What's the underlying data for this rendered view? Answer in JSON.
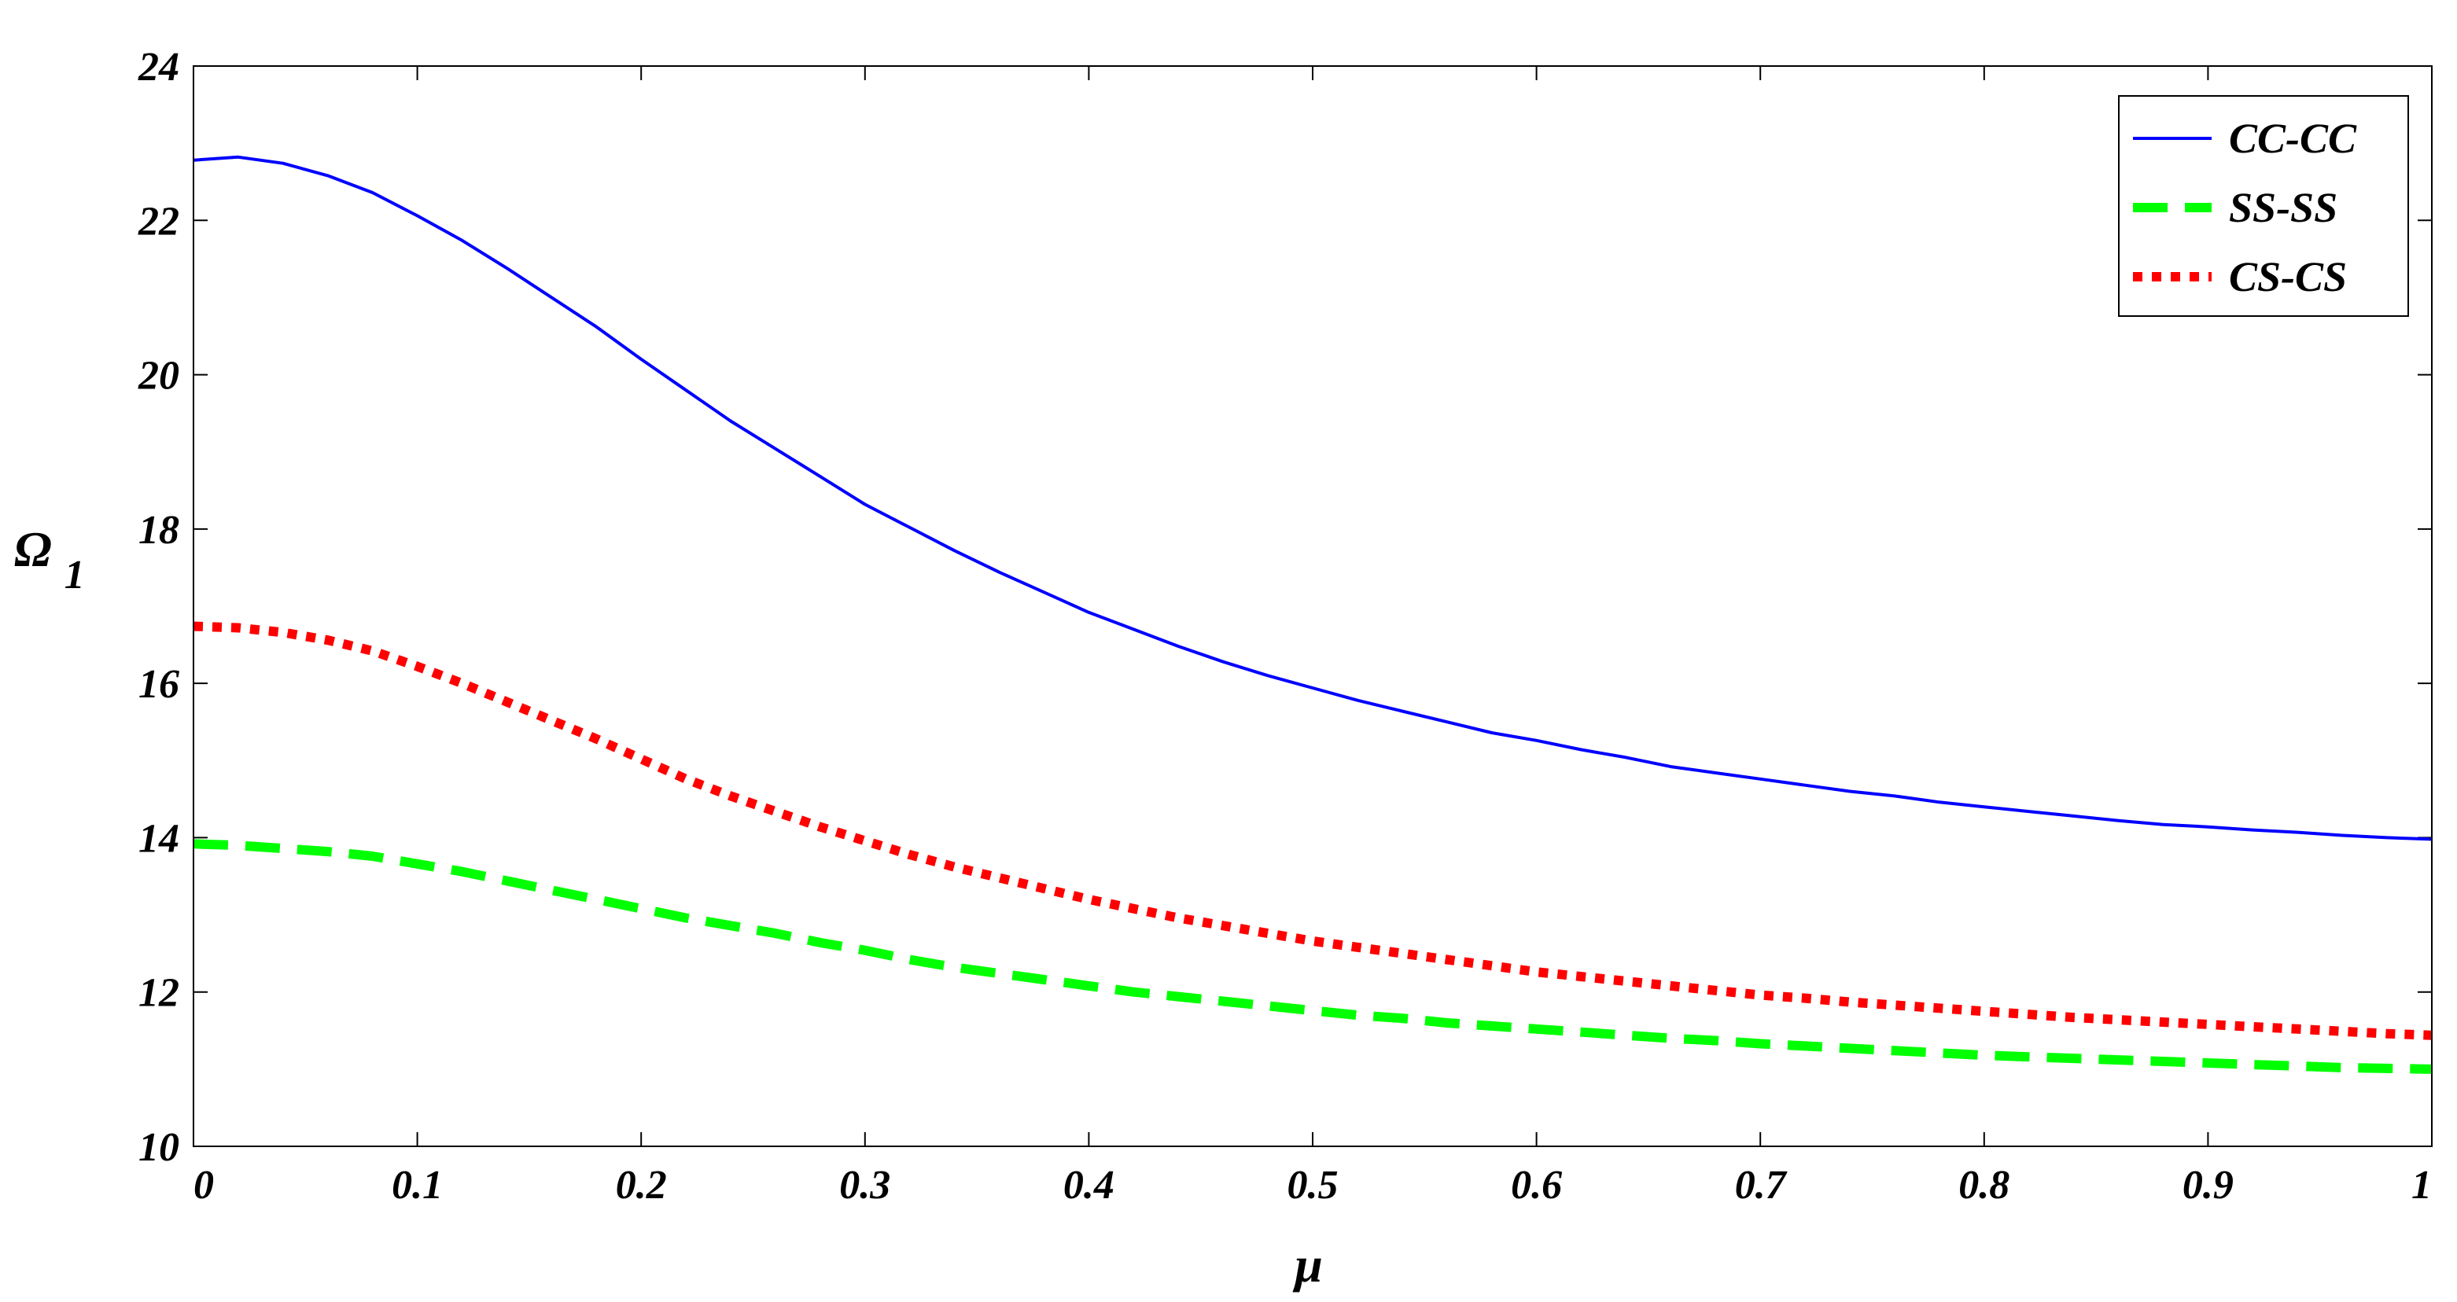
{
  "chart_data": {
    "type": "line",
    "xlabel": "μ",
    "ylabel": {
      "main": "Ω",
      "sub": "1"
    },
    "xlim": [
      0,
      1
    ],
    "ylim": [
      10,
      24
    ],
    "x_ticks": [
      "0",
      "0.1",
      "0.2",
      "0.3",
      "0.4",
      "0.5",
      "0.6",
      "0.7",
      "0.8",
      "0.9",
      "1"
    ],
    "y_ticks": [
      "10",
      "12",
      "14",
      "16",
      "18",
      "20",
      "22",
      "24"
    ],
    "grid": false,
    "legend": "top-right",
    "x": [
      0,
      0.02,
      0.04,
      0.06,
      0.08,
      0.1,
      0.12,
      0.14,
      0.16,
      0.18,
      0.2,
      0.22,
      0.24,
      0.26,
      0.28,
      0.3,
      0.32,
      0.34,
      0.36,
      0.38,
      0.4,
      0.42,
      0.44,
      0.46,
      0.48,
      0.5,
      0.52,
      0.54,
      0.56,
      0.58,
      0.6,
      0.62,
      0.64,
      0.66,
      0.68,
      0.7,
      0.72,
      0.74,
      0.76,
      0.78,
      0.8,
      0.82,
      0.84,
      0.86,
      0.88,
      0.9,
      0.92,
      0.94,
      0.96,
      0.98,
      1.0
    ],
    "series": [
      {
        "name": "CC-CC",
        "color": "#0000ff",
        "style": "solid",
        "values": [
          22.78,
          22.82,
          22.74,
          22.58,
          22.36,
          22.06,
          21.74,
          21.38,
          21.0,
          20.62,
          20.2,
          19.8,
          19.4,
          19.04,
          18.68,
          18.32,
          18.02,
          17.72,
          17.44,
          17.18,
          16.92,
          16.7,
          16.48,
          16.28,
          16.1,
          15.94,
          15.78,
          15.64,
          15.5,
          15.36,
          15.26,
          15.14,
          15.04,
          14.92,
          14.84,
          14.76,
          14.68,
          14.6,
          14.54,
          14.46,
          14.4,
          14.34,
          14.28,
          14.22,
          14.17,
          14.14,
          14.1,
          14.07,
          14.03,
          14.0,
          13.98
        ]
      },
      {
        "name": "SS-SS",
        "color": "#00ff00",
        "style": "dashed",
        "values": [
          13.92,
          13.9,
          13.86,
          13.82,
          13.76,
          13.66,
          13.56,
          13.44,
          13.32,
          13.2,
          13.08,
          12.96,
          12.86,
          12.76,
          12.64,
          12.54,
          12.42,
          12.32,
          12.24,
          12.16,
          12.08,
          12.0,
          11.94,
          11.88,
          11.82,
          11.76,
          11.7,
          11.66,
          11.6,
          11.56,
          11.52,
          11.48,
          11.44,
          11.4,
          11.37,
          11.33,
          11.3,
          11.27,
          11.24,
          11.21,
          11.18,
          11.16,
          11.14,
          11.12,
          11.1,
          11.08,
          11.06,
          11.04,
          11.02,
          11.01,
          11.0
        ]
      },
      {
        "name": "CS-CS",
        "color": "#ff0000",
        "style": "dotted",
        "values": [
          16.74,
          16.72,
          16.66,
          16.56,
          16.42,
          16.22,
          16.0,
          15.76,
          15.52,
          15.28,
          15.02,
          14.76,
          14.54,
          14.34,
          14.14,
          13.96,
          13.78,
          13.62,
          13.48,
          13.34,
          13.2,
          13.08,
          12.96,
          12.86,
          12.76,
          12.66,
          12.58,
          12.5,
          12.42,
          12.34,
          12.26,
          12.2,
          12.14,
          12.08,
          12.02,
          11.96,
          11.92,
          11.87,
          11.83,
          11.79,
          11.75,
          11.71,
          11.67,
          11.64,
          11.61,
          11.58,
          11.55,
          11.52,
          11.49,
          11.46,
          11.44
        ]
      }
    ]
  }
}
